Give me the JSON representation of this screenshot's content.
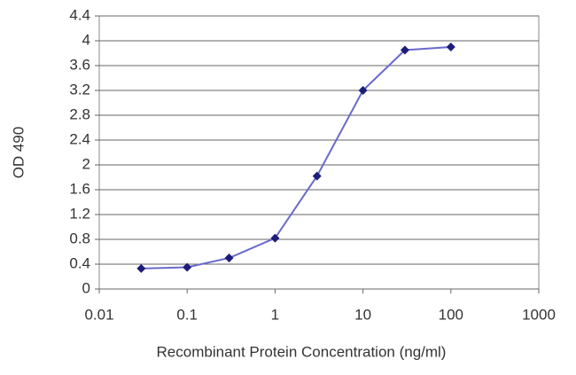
{
  "chart_data": {
    "type": "line",
    "x_label": "Recombinant Protein Concentration (ng/ml)",
    "y_label": "OD 490",
    "x": [
      0.03,
      0.1,
      0.3,
      1,
      3,
      10,
      30,
      100
    ],
    "values": [
      0.33,
      0.35,
      0.5,
      0.82,
      1.82,
      3.2,
      3.85,
      3.9
    ],
    "color": "#6a6acc",
    "marker_color": "#1c1c7a",
    "xlim": [
      0.01,
      1000
    ],
    "xticks": [
      0.01,
      0.1,
      1,
      10,
      100,
      1000
    ],
    "xscale": "log",
    "ylim": [
      0,
      4.4
    ],
    "yticks": [
      0,
      0.4,
      0.8,
      1.2,
      1.6,
      2,
      2.4,
      2.8,
      3.2,
      3.6,
      4,
      4.4
    ],
    "grid": true
  }
}
